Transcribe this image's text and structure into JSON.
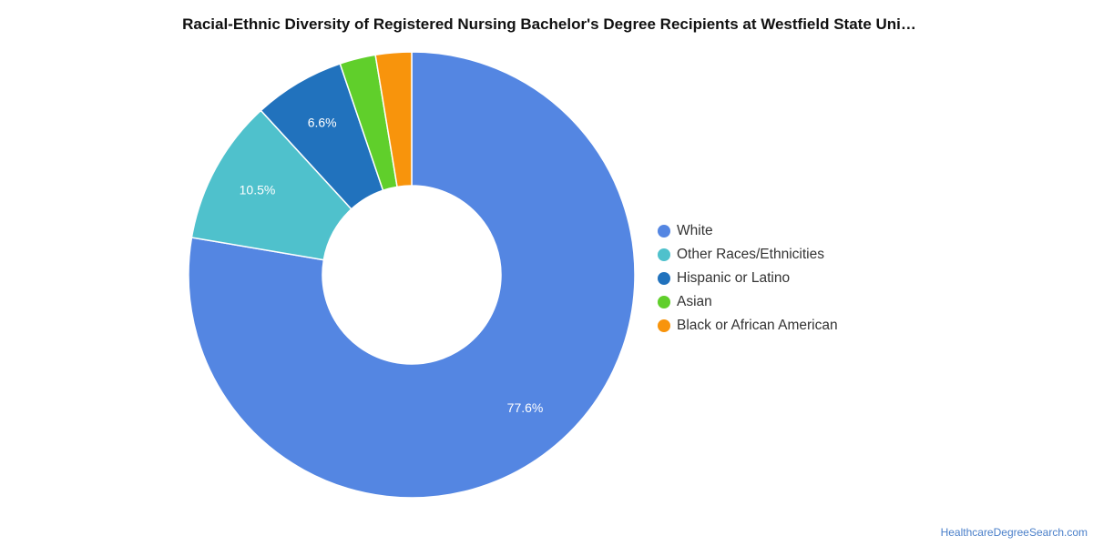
{
  "chart_data": {
    "type": "pie",
    "variant": "donut",
    "title": "Racial-Ethnic Diversity of Registered Nursing Bachelor's Degree Recipients at Westfield State Uni…",
    "legend_position": "right",
    "series": [
      {
        "name": "White",
        "value": 77.6,
        "label": "77.6%",
        "color": "#5486e2"
      },
      {
        "name": "Other Races/Ethnicities",
        "value": 10.5,
        "label": "10.5%",
        "color": "#4fc1cc"
      },
      {
        "name": "Hispanic or Latino",
        "value": 6.6,
        "label": "6.6%",
        "color": "#2172bd"
      },
      {
        "name": "Asian",
        "value": 2.6,
        "label": "",
        "color": "#60cf2b"
      },
      {
        "name": "Black or African American",
        "value": 2.6,
        "label": "",
        "color": "#f8940c"
      }
    ]
  },
  "footer": {
    "source": "HealthcareDegreeSearch.com"
  }
}
